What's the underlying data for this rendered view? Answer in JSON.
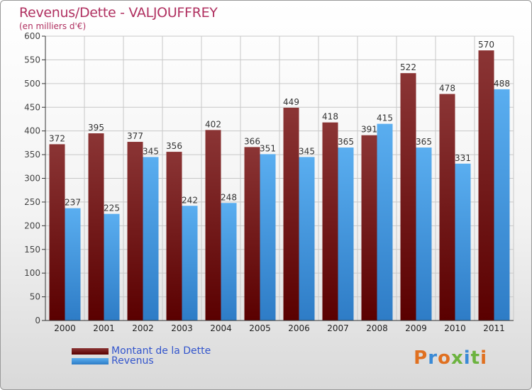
{
  "title": "Revenus/Dette - VALJOUFFREY",
  "subtitle": "(en milliers d'€)",
  "logo": "Proxiti",
  "colors": {
    "debt_top": "#8b3535",
    "debt_bottom": "#5a0000",
    "revenue_top": "#5aaef0",
    "revenue_bottom": "#2e7cc6",
    "title": "#b03060"
  },
  "legend": {
    "debt_label": "Montant de la Dette",
    "revenue_label": "Revenus"
  },
  "chart_data": {
    "type": "bar",
    "title": "Revenus/Dette - VALJOUFFREY",
    "subtitle": "(en milliers d'€)",
    "categories": [
      "2000",
      "2001",
      "2002",
      "2003",
      "2004",
      "2005",
      "2006",
      "2007",
      "2008",
      "2009",
      "2010",
      "2011"
    ],
    "series": [
      {
        "name": "Montant de la Dette",
        "values": [
          372,
          395,
          377,
          356,
          402,
          366,
          449,
          418,
          391,
          522,
          478,
          570
        ]
      },
      {
        "name": "Revenus",
        "values": [
          237,
          225,
          345,
          242,
          248,
          351,
          345,
          365,
          415,
          365,
          331,
          488
        ]
      }
    ],
    "ylim": [
      0,
      600
    ],
    "yticks": [
      0,
      50,
      100,
      150,
      200,
      250,
      300,
      350,
      400,
      450,
      500,
      550,
      600
    ],
    "grid": true,
    "legend_position": "bottom-left"
  }
}
